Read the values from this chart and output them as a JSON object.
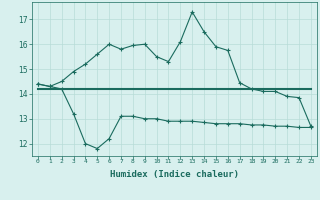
{
  "xlabel": "Humidex (Indice chaleur)",
  "x": [
    0,
    1,
    2,
    3,
    4,
    5,
    6,
    7,
    8,
    9,
    10,
    11,
    12,
    13,
    14,
    15,
    16,
    17,
    18,
    19,
    20,
    21,
    22,
    23
  ],
  "y_top": [
    14.4,
    14.3,
    14.5,
    14.9,
    15.2,
    15.6,
    16.0,
    15.8,
    15.95,
    16.0,
    15.5,
    15.3,
    16.1,
    17.3,
    16.5,
    15.9,
    15.75,
    14.45,
    14.2,
    14.1,
    14.1,
    13.9,
    13.85,
    12.7
  ],
  "y_mid": [
    14.2,
    14.2,
    14.2,
    14.2,
    14.2,
    14.2,
    14.2,
    14.2,
    14.2,
    14.2,
    14.2,
    14.2,
    14.2,
    14.2,
    14.2,
    14.2,
    14.2,
    14.2,
    14.2,
    14.2,
    14.2,
    14.2,
    14.2,
    14.2
  ],
  "y_bot": [
    14.4,
    14.3,
    14.2,
    13.2,
    12.0,
    11.8,
    12.2,
    13.1,
    13.1,
    13.0,
    13.0,
    12.9,
    12.9,
    12.9,
    12.85,
    12.8,
    12.8,
    12.8,
    12.75,
    12.75,
    12.7,
    12.7,
    12.65,
    12.65
  ],
  "line_color": "#1a6b5e",
  "bg_color": "#d8f0ee",
  "grid_color": "#b8dcd8",
  "ylim": [
    11.5,
    17.7
  ],
  "yticks": [
    12,
    13,
    14,
    15,
    16,
    17
  ],
  "xlim": [
    -0.5,
    23.5
  ]
}
